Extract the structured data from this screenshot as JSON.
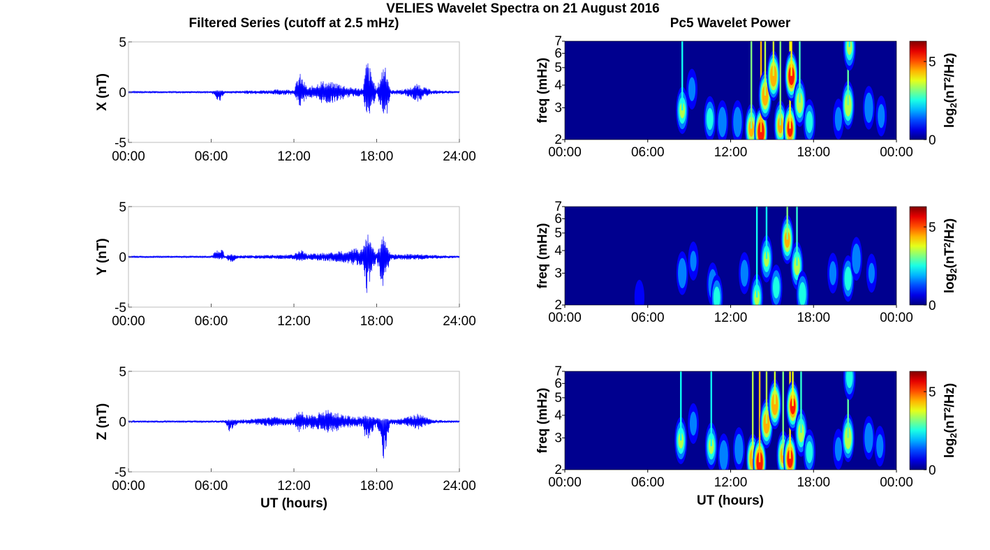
{
  "figure": {
    "title": "VELIES Wavelet Spectra on 21 August 2016",
    "left_title": "Filtered Series (cutoff at 2.5 mHz)",
    "right_title": "Pc5 Wavelet Power",
    "left_xlabel": "UT (hours)",
    "right_xlabel": "UT (hours)"
  },
  "colors": {
    "series_line": "#0000ff",
    "spectrogram_background": "#00008f",
    "colormap": "jet"
  },
  "chart_data": [
    {
      "type": "line",
      "component": "X",
      "ylabel": "X (nT)",
      "ylim": [
        -5,
        5
      ],
      "yticks": [
        "5",
        "0",
        "-5"
      ],
      "xlim": [
        0,
        24
      ],
      "xticks": [
        "00:00",
        "06:00",
        "12:00",
        "18:00",
        "24:00"
      ],
      "x": [
        0,
        6,
        6.6,
        7,
        8,
        9,
        10,
        11,
        12,
        12.4,
        13,
        13.5,
        14,
        14.5,
        15,
        15.5,
        16,
        17,
        17.3,
        18,
        18.6,
        19,
        20,
        20.5,
        21,
        21.5,
        22,
        23,
        24
      ],
      "upper_envelope": [
        0.1,
        0.1,
        0.25,
        0.1,
        0.15,
        0.2,
        0.2,
        0.3,
        0.25,
        2.0,
        0.4,
        0.8,
        1.2,
        1.0,
        1.0,
        0.8,
        0.5,
        0.4,
        3.5,
        0.3,
        3.5,
        0.2,
        0.3,
        0.5,
        0.9,
        0.5,
        0.2,
        0.15,
        0.1
      ],
      "lower_envelope": [
        -0.1,
        -0.1,
        -1.0,
        -0.1,
        -0.15,
        -0.2,
        -0.2,
        -0.3,
        -0.25,
        -1.6,
        -0.5,
        -0.8,
        -1.1,
        -1.2,
        -1.0,
        -0.8,
        -0.5,
        -0.4,
        -3.3,
        -0.3,
        -3.5,
        -0.2,
        -0.3,
        -0.6,
        -1.0,
        -0.5,
        -0.2,
        -0.15,
        -0.1
      ]
    },
    {
      "type": "line",
      "component": "Y",
      "ylabel": "Y (nT)",
      "ylim": [
        -5,
        5
      ],
      "yticks": [
        "5",
        "0",
        "-5"
      ],
      "xlim": [
        0,
        24
      ],
      "xticks": [
        "00:00",
        "06:00",
        "12:00",
        "18:00",
        "24:00"
      ],
      "x": [
        0,
        6,
        6.7,
        7,
        7.4,
        8,
        10,
        12,
        12.4,
        13,
        14,
        15,
        16,
        16.5,
        17,
        17.3,
        18,
        18.5,
        19,
        20,
        21,
        22,
        24
      ],
      "upper_envelope": [
        0.1,
        0.1,
        1.2,
        0.1,
        0.3,
        0.15,
        0.2,
        0.25,
        0.8,
        0.3,
        0.4,
        0.5,
        0.7,
        0.9,
        1.0,
        2.5,
        0.3,
        2.3,
        0.3,
        0.3,
        0.3,
        0.2,
        0.1
      ],
      "lower_envelope": [
        -0.1,
        -0.1,
        -0.3,
        -0.1,
        -0.6,
        -0.15,
        -0.2,
        -0.25,
        -0.6,
        -0.3,
        -0.4,
        -0.5,
        -0.7,
        -0.9,
        -1.0,
        -3.7,
        -0.3,
        -3.9,
        -0.3,
        -0.3,
        -0.3,
        -0.2,
        -0.1
      ]
    },
    {
      "type": "line",
      "component": "Z",
      "ylabel": "Z (nT)",
      "ylim": [
        -5,
        5
      ],
      "yticks": [
        "5",
        "0",
        "-5"
      ],
      "xlim": [
        0,
        24
      ],
      "xticks": [
        "00:00",
        "06:00",
        "12:00",
        "18:00",
        "24:00"
      ],
      "xlabel": "UT (hours)",
      "x": [
        0,
        6,
        7,
        7.3,
        8,
        9,
        10.5,
        11,
        12,
        12.4,
        13,
        14,
        14.5,
        15,
        15.5,
        16,
        17,
        17.2,
        18,
        18.5,
        19,
        20,
        20.5,
        21,
        21.5,
        22,
        24
      ],
      "upper_envelope": [
        0.1,
        0.1,
        0.15,
        0.2,
        0.2,
        0.3,
        0.5,
        0.4,
        0.4,
        1.3,
        0.6,
        1.0,
        1.2,
        1.0,
        0.8,
        0.6,
        0.5,
        0.7,
        0.4,
        0.3,
        0.3,
        0.4,
        0.6,
        0.8,
        0.5,
        0.2,
        0.1
      ],
      "lower_envelope": [
        -0.1,
        -0.1,
        -0.15,
        -1.0,
        -0.2,
        -0.3,
        -0.5,
        -0.4,
        -0.4,
        -1.2,
        -0.6,
        -1.0,
        -1.2,
        -1.0,
        -0.8,
        -0.6,
        -0.5,
        -2.1,
        -0.4,
        -4.1,
        -0.3,
        -0.4,
        -0.6,
        -0.9,
        -0.5,
        -0.2,
        -0.1
      ]
    },
    {
      "type": "heatmap",
      "component": "X",
      "ylabel": "freq (mHz)",
      "ylim": [
        2,
        7
      ],
      "ytick_values": [
        2,
        3,
        4,
        5,
        6,
        7
      ],
      "xlim": [
        0,
        24
      ],
      "xticks": [
        "00:00",
        "06:00",
        "12:00",
        "18:00",
        "00:00"
      ],
      "colorbar_label": "log",
      "colorbar_sub": "2",
      "colorbar_unit": "(nT",
      "colorbar_sup": "2",
      "colorbar_tail": "/Hz)",
      "colorbar_ticks": [
        "0",
        "5"
      ],
      "colorbar_range": [
        0,
        6.3
      ],
      "power_blobs": [
        {
          "t": 8.5,
          "f": 2.9,
          "power": 3.5
        },
        {
          "t": 9.2,
          "f": 3.8,
          "power": 2.0
        },
        {
          "t": 10.5,
          "f": 2.6,
          "power": 3.0
        },
        {
          "t": 11.4,
          "f": 2.5,
          "power": 2.5
        },
        {
          "t": 12.5,
          "f": 2.5,
          "power": 2.5
        },
        {
          "t": 13.5,
          "f": 2.3,
          "power": 4.5
        },
        {
          "t": 14.2,
          "f": 2.2,
          "power": 6.2
        },
        {
          "t": 14.5,
          "f": 3.5,
          "power": 5.0
        },
        {
          "t": 15.1,
          "f": 4.5,
          "power": 5.2
        },
        {
          "t": 15.6,
          "f": 2.4,
          "power": 4.5
        },
        {
          "t": 16.3,
          "f": 2.3,
          "power": 5.5
        },
        {
          "t": 16.4,
          "f": 4.5,
          "power": 5.8
        },
        {
          "t": 17.0,
          "f": 3.2,
          "power": 4.0
        },
        {
          "t": 17.7,
          "f": 2.5,
          "power": 3.0
        },
        {
          "t": 19.8,
          "f": 2.6,
          "power": 2.0
        },
        {
          "t": 20.5,
          "f": 3.1,
          "power": 4.2
        },
        {
          "t": 20.6,
          "f": 6.5,
          "power": 3.5
        },
        {
          "t": 22.0,
          "f": 3.0,
          "power": 2.5
        },
        {
          "t": 22.9,
          "f": 2.7,
          "power": 2.0
        }
      ]
    },
    {
      "type": "heatmap",
      "component": "Y",
      "ylabel": "freq (mHz)",
      "ylim": [
        2,
        7
      ],
      "ytick_values": [
        2,
        3,
        4,
        5,
        6,
        7
      ],
      "xlim": [
        0,
        24
      ],
      "xticks": [
        "00:00",
        "06:00",
        "12:00",
        "18:00",
        "00:00"
      ],
      "colorbar_label": "log",
      "colorbar_sub": "2",
      "colorbar_unit": "(nT",
      "colorbar_sup": "2",
      "colorbar_tail": "/Hz)",
      "colorbar_ticks": [
        "0",
        "5"
      ],
      "colorbar_range": [
        0,
        6.3
      ],
      "power_blobs": [
        {
          "t": 5.4,
          "f": 2.2,
          "power": 1.5
        },
        {
          "t": 8.5,
          "f": 3.0,
          "power": 2.5
        },
        {
          "t": 9.3,
          "f": 3.5,
          "power": 1.8
        },
        {
          "t": 10.7,
          "f": 2.6,
          "power": 2.5
        },
        {
          "t": 11.0,
          "f": 2.2,
          "power": 3.0
        },
        {
          "t": 13.0,
          "f": 3.0,
          "power": 2.2
        },
        {
          "t": 13.9,
          "f": 2.2,
          "power": 3.5
        },
        {
          "t": 14.6,
          "f": 3.6,
          "power": 3.5
        },
        {
          "t": 15.3,
          "f": 2.5,
          "power": 3.0
        },
        {
          "t": 16.1,
          "f": 4.6,
          "power": 4.5
        },
        {
          "t": 16.8,
          "f": 3.3,
          "power": 3.8
        },
        {
          "t": 17.2,
          "f": 2.3,
          "power": 3.2
        },
        {
          "t": 19.4,
          "f": 3.0,
          "power": 2.0
        },
        {
          "t": 20.5,
          "f": 2.8,
          "power": 3.2
        },
        {
          "t": 21.1,
          "f": 3.6,
          "power": 2.5
        },
        {
          "t": 22.2,
          "f": 3.0,
          "power": 1.8
        }
      ]
    },
    {
      "type": "heatmap",
      "component": "Z",
      "ylabel": "freq (mHz)",
      "ylim": [
        2,
        7
      ],
      "ytick_values": [
        2,
        3,
        4,
        5,
        6,
        7
      ],
      "xlim": [
        0,
        24
      ],
      "xticks": [
        "00:00",
        "06:00",
        "12:00",
        "18:00",
        "00:00"
      ],
      "xlabel": "UT (hours)",
      "colorbar_label": "log",
      "colorbar_sub": "2",
      "colorbar_unit": "(nT",
      "colorbar_sup": "2",
      "colorbar_tail": "/Hz)",
      "colorbar_ticks": [
        "0",
        "5"
      ],
      "colorbar_range": [
        0,
        6.3
      ],
      "power_blobs": [
        {
          "t": 8.4,
          "f": 2.9,
          "power": 3.5
        },
        {
          "t": 9.3,
          "f": 3.6,
          "power": 2.0
        },
        {
          "t": 10.6,
          "f": 2.7,
          "power": 3.5
        },
        {
          "t": 11.5,
          "f": 2.4,
          "power": 2.5
        },
        {
          "t": 12.6,
          "f": 2.6,
          "power": 2.5
        },
        {
          "t": 13.6,
          "f": 2.3,
          "power": 5.0
        },
        {
          "t": 14.1,
          "f": 2.2,
          "power": 6.2
        },
        {
          "t": 14.6,
          "f": 3.6,
          "power": 5.0
        },
        {
          "t": 15.2,
          "f": 4.6,
          "power": 5.2
        },
        {
          "t": 15.8,
          "f": 2.4,
          "power": 4.5
        },
        {
          "t": 16.3,
          "f": 2.3,
          "power": 5.8
        },
        {
          "t": 16.5,
          "f": 4.5,
          "power": 5.5
        },
        {
          "t": 17.1,
          "f": 3.2,
          "power": 3.8
        },
        {
          "t": 17.7,
          "f": 2.5,
          "power": 3.0
        },
        {
          "t": 19.8,
          "f": 2.6,
          "power": 2.0
        },
        {
          "t": 20.5,
          "f": 3.0,
          "power": 4.2
        },
        {
          "t": 20.6,
          "f": 6.5,
          "power": 3.0
        },
        {
          "t": 22.0,
          "f": 3.0,
          "power": 2.5
        },
        {
          "t": 22.8,
          "f": 2.7,
          "power": 2.0
        }
      ]
    }
  ]
}
